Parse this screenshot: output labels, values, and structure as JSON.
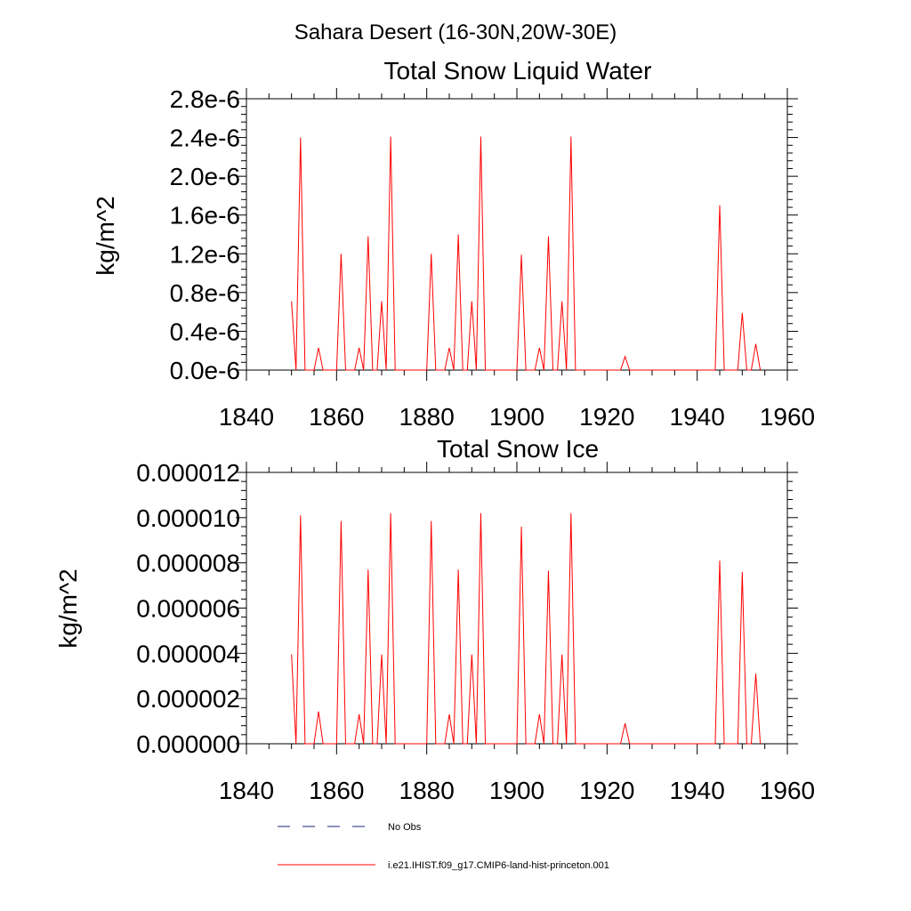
{
  "suptitle": "Sahara Desert (16-30N,20W-30E)",
  "colors": {
    "model": "#ff0000",
    "obs": "#1a237e",
    "axis": "#000000"
  },
  "legend": {
    "obs_label": "No Obs",
    "model_label": "i.e21.IHIST.f09_g17.CMIP6-land-hist-princeton.001"
  },
  "chart_data": [
    {
      "type": "line",
      "title": "Total Snow Liquid Water",
      "ylabel": "kg/m^2",
      "xlim": [
        1840,
        1960
      ],
      "ylim": [
        0,
        2.8e-06
      ],
      "xticks": [
        "1840",
        "1860",
        "1880",
        "1900",
        "1920",
        "1940",
        "1960"
      ],
      "yticks": [
        "0.0e-6",
        "0.4e-6",
        "0.8e-6",
        "1.2e-6",
        "1.6e-6",
        "2.0e-6",
        "2.4e-6",
        "2.8e-6"
      ],
      "series": [
        {
          "x": [
            1850,
            1851,
            1852,
            1853,
            1854,
            1855,
            1856,
            1857,
            1858,
            1859,
            1860,
            1861,
            1862,
            1863,
            1864,
            1865,
            1866,
            1867,
            1868,
            1869,
            1870,
            1871,
            1872,
            1873,
            1874,
            1875,
            1876,
            1877,
            1878,
            1879,
            1880,
            1881,
            1882,
            1883,
            1884,
            1885,
            1886,
            1887,
            1888,
            1889,
            1890,
            1891,
            1892,
            1893,
            1894,
            1895,
            1896,
            1897,
            1898,
            1899,
            1900,
            1901,
            1902,
            1903,
            1904,
            1905,
            1906,
            1907,
            1908,
            1909,
            1910,
            1911,
            1912,
            1913,
            1914,
            1915,
            1916,
            1917,
            1918,
            1919,
            1920,
            1921,
            1922,
            1923,
            1924,
            1925,
            1926,
            1927,
            1928,
            1929,
            1930,
            1931,
            1932,
            1933,
            1934,
            1935,
            1936,
            1937,
            1938,
            1939,
            1940,
            1941,
            1942,
            1943,
            1944,
            1945,
            1946,
            1947,
            1948,
            1949,
            1950,
            1951,
            1952,
            1953,
            1954
          ],
          "y": [
            7.1e-07,
            0,
            2.4e-06,
            0,
            0,
            0,
            2.3e-07,
            0,
            0,
            0,
            0,
            1.2e-06,
            0,
            0,
            0,
            2.3e-07,
            0,
            1.38e-06,
            0,
            0,
            7.1e-07,
            0,
            2.41e-06,
            0,
            0,
            0,
            0,
            0,
            0,
            0,
            0,
            1.2e-06,
            0,
            0,
            0,
            2.3e-07,
            0,
            1.4e-06,
            0,
            0,
            7.1e-07,
            0,
            2.41e-06,
            0,
            0,
            0,
            0,
            0,
            0,
            0,
            0,
            1.19e-06,
            0,
            0,
            0,
            2.3e-07,
            0,
            1.38e-06,
            0,
            0,
            7.1e-07,
            0,
            2.41e-06,
            0,
            0,
            0,
            0,
            0,
            0,
            0,
            0,
            0,
            0,
            0,
            1.4e-07,
            0,
            0,
            0,
            0,
            0,
            0,
            0,
            0,
            0,
            0,
            0,
            0,
            0,
            0,
            0,
            0,
            0,
            0,
            0,
            0,
            1.7e-06,
            0,
            0,
            0,
            0,
            5.9e-07,
            0,
            0,
            2.7e-07,
            0
          ]
        }
      ]
    },
    {
      "type": "line",
      "title": "Total Snow Ice",
      "ylabel": "kg/m^2",
      "xlim": [
        1840,
        1960
      ],
      "ylim": [
        0,
        1.2e-05
      ],
      "xticks": [
        "1840",
        "1860",
        "1880",
        "1900",
        "1920",
        "1940",
        "1960"
      ],
      "yticks": [
        "0.000000",
        "0.000002",
        "0.000004",
        "0.000006",
        "0.000008",
        "0.000010",
        "0.000012"
      ],
      "series": [
        {
          "x": [
            1850,
            1851,
            1852,
            1853,
            1854,
            1855,
            1856,
            1857,
            1858,
            1859,
            1860,
            1861,
            1862,
            1863,
            1864,
            1865,
            1866,
            1867,
            1868,
            1869,
            1870,
            1871,
            1872,
            1873,
            1874,
            1875,
            1876,
            1877,
            1878,
            1879,
            1880,
            1881,
            1882,
            1883,
            1884,
            1885,
            1886,
            1887,
            1888,
            1889,
            1890,
            1891,
            1892,
            1893,
            1894,
            1895,
            1896,
            1897,
            1898,
            1899,
            1900,
            1901,
            1902,
            1903,
            1904,
            1905,
            1906,
            1907,
            1908,
            1909,
            1910,
            1911,
            1912,
            1913,
            1914,
            1915,
            1916,
            1917,
            1918,
            1919,
            1920,
            1921,
            1922,
            1923,
            1924,
            1925,
            1926,
            1927,
            1928,
            1929,
            1930,
            1931,
            1932,
            1933,
            1934,
            1935,
            1936,
            1937,
            1938,
            1939,
            1940,
            1941,
            1942,
            1943,
            1944,
            1945,
            1946,
            1947,
            1948,
            1949,
            1950,
            1951,
            1952,
            1953,
            1954
          ],
          "y": [
            3.95e-06,
            0,
            1.01e-05,
            0,
            0,
            0,
            1.43e-06,
            0,
            0,
            0,
            0,
            9.85e-06,
            0,
            0,
            0,
            1.3e-06,
            0,
            7.7e-06,
            0,
            0,
            3.95e-06,
            0,
            1.02e-05,
            0,
            0,
            0,
            0,
            0,
            0,
            0,
            0,
            9.85e-06,
            0,
            0,
            0,
            1.3e-06,
            0,
            7.7e-06,
            0,
            0,
            3.95e-06,
            0,
            1.02e-05,
            0,
            0,
            0,
            0,
            0,
            0,
            0,
            0,
            9.6e-06,
            0,
            0,
            0,
            1.3e-06,
            0,
            7.65e-06,
            0,
            0,
            3.95e-06,
            0,
            1.02e-05,
            0,
            0,
            0,
            0,
            0,
            0,
            0,
            0,
            0,
            0,
            0,
            9e-07,
            0,
            0,
            0,
            0,
            0,
            0,
            0,
            0,
            0,
            0,
            0,
            0,
            0,
            0,
            0,
            0,
            0,
            0,
            0,
            0,
            8.1e-06,
            0,
            0,
            0,
            0,
            7.6e-06,
            0,
            0,
            3.1e-06,
            0
          ]
        }
      ]
    }
  ]
}
